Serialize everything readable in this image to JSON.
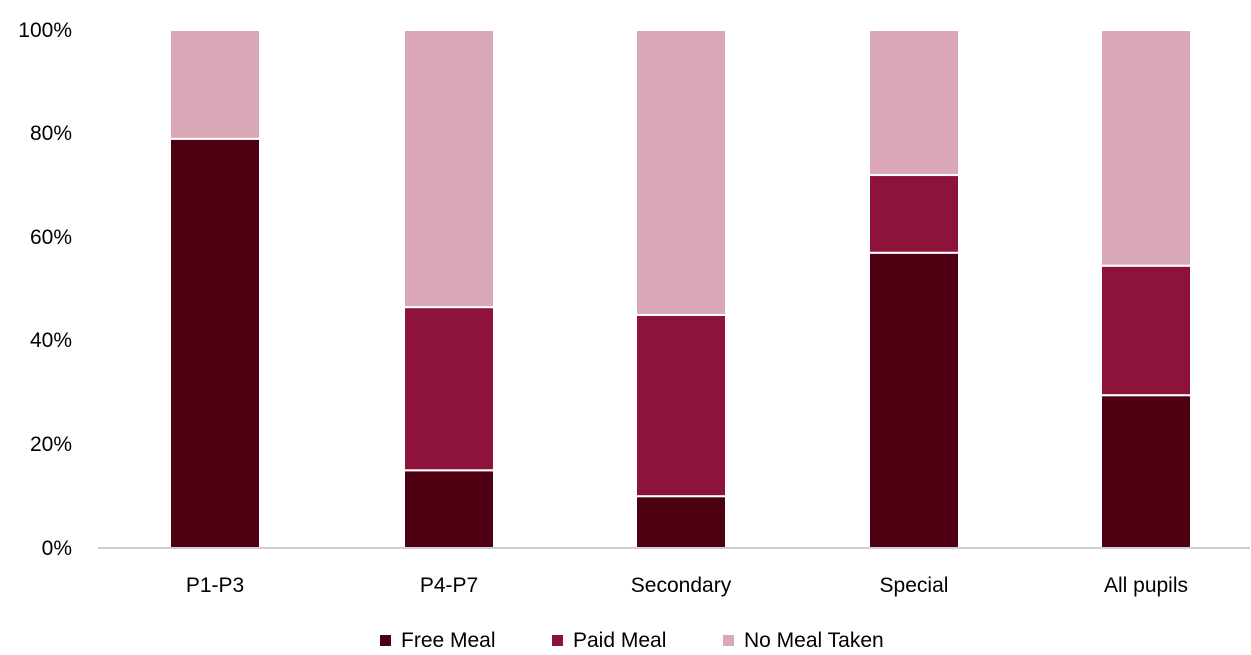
{
  "chart_data": {
    "type": "bar",
    "stacked": true,
    "categories": [
      "P1-P3",
      "P4-P7",
      "Secondary",
      "Special",
      "All pupils"
    ],
    "series": [
      {
        "name": "Free Meal",
        "values": [
          79,
          15,
          10,
          57,
          29.5
        ],
        "color": "#4d0011"
      },
      {
        "name": "Paid Meal",
        "values": [
          0,
          31.5,
          35,
          15,
          25
        ],
        "color": "#8e133a"
      },
      {
        "name": "No Meal Taken",
        "values": [
          21,
          53.5,
          55,
          28,
          45.5
        ],
        "color": "#d9a7b5"
      }
    ],
    "y_ticks": [
      "0%",
      "20%",
      "40%",
      "60%",
      "80%",
      "100%"
    ],
    "ylim": [
      0,
      100
    ],
    "title": "",
    "xlabel": "",
    "ylabel": "",
    "grid": false,
    "legend_position": "bottom"
  }
}
